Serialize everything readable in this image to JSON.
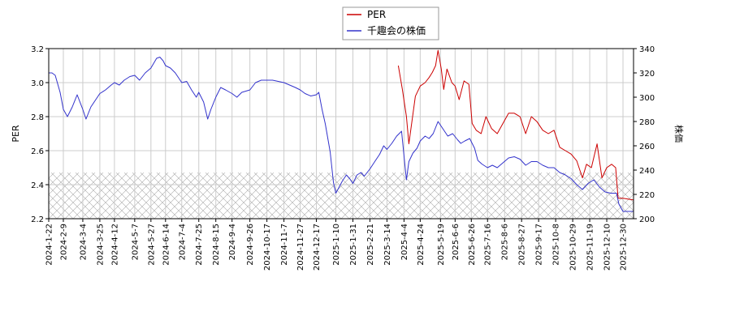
{
  "chart_data": {
    "type": "line",
    "legend": {
      "placement": "top-center",
      "entries": [
        {
          "label": "PER",
          "color": "#cc0000"
        },
        {
          "label": "千趣会の株価",
          "color": "#3333cc"
        }
      ]
    },
    "left_axis": {
      "label": "PER",
      "min": 2.2,
      "max": 3.2,
      "ticks": [
        "2.2",
        "2.4",
        "2.6",
        "2.8",
        "3.0",
        "3.2"
      ]
    },
    "right_axis": {
      "label": "株価",
      "min": 200,
      "max": 340,
      "ticks": [
        "200",
        "220",
        "240",
        "260",
        "280",
        "300",
        "320",
        "340"
      ]
    },
    "x_range": [
      "2024-01-22",
      "2026-01-12"
    ],
    "x_tick_labels": [
      "2024-1-22",
      "2024-2-9",
      "2024-3-4",
      "2024-3-25",
      "2024-4-12",
      "2024-5-7",
      "2024-5-27",
      "2024-6-14",
      "2024-7-4",
      "2024-7-25",
      "2024-8-15",
      "2024-9-4",
      "2024-9-26",
      "2024-10-17",
      "2024-11-7",
      "2024-11-27",
      "2024-12-17",
      "2025-1-10",
      "2025-1-31",
      "2025-2-21",
      "2025-3-14",
      "2025-4-4",
      "2025-4-24",
      "2025-5-19",
      "2025-6-6",
      "2025-6-26",
      "2025-7-16",
      "2025-8-6",
      "2025-8-27",
      "2025-9-17",
      "2025-10-8",
      "2025-10-29",
      "2025-11-19",
      "2025-12-10",
      "2025-12-30"
    ],
    "grid": true,
    "hatched_band": {
      "axis": "right",
      "from": 200,
      "to": 238
    },
    "series": [
      {
        "name": "PER",
        "axis": "left",
        "color": "#cc0000",
        "points": [
          [
            "2025-3-28",
            3.1
          ],
          [
            "2025-4-2",
            2.96
          ],
          [
            "2025-4-7",
            2.8
          ],
          [
            "2025-4-10",
            2.64
          ],
          [
            "2025-4-14",
            2.78
          ],
          [
            "2025-4-18",
            2.92
          ],
          [
            "2025-4-24",
            2.98
          ],
          [
            "2025-4-30",
            3.0
          ],
          [
            "2025-5-5",
            3.03
          ],
          [
            "2025-5-9",
            3.06
          ],
          [
            "2025-5-13",
            3.1
          ],
          [
            "2025-5-16",
            3.19
          ],
          [
            "2025-5-20",
            3.08
          ],
          [
            "2025-5-23",
            2.96
          ],
          [
            "2025-5-27",
            3.08
          ],
          [
            "2025-6-2",
            3.0
          ],
          [
            "2025-6-6",
            2.98
          ],
          [
            "2025-6-11",
            2.9
          ],
          [
            "2025-6-17",
            3.01
          ],
          [
            "2025-6-23",
            2.99
          ],
          [
            "2025-6-27",
            2.76
          ],
          [
            "2025-7-2",
            2.72
          ],
          [
            "2025-7-8",
            2.7
          ],
          [
            "2025-7-14",
            2.8
          ],
          [
            "2025-7-21",
            2.73
          ],
          [
            "2025-7-28",
            2.7
          ],
          [
            "2025-8-4",
            2.76
          ],
          [
            "2025-8-11",
            2.82
          ],
          [
            "2025-8-18",
            2.82
          ],
          [
            "2025-8-25",
            2.8
          ],
          [
            "2025-9-1",
            2.7
          ],
          [
            "2025-9-8",
            2.8
          ],
          [
            "2025-9-15",
            2.77
          ],
          [
            "2025-9-22",
            2.72
          ],
          [
            "2025-9-29",
            2.7
          ],
          [
            "2025-10-6",
            2.72
          ],
          [
            "2025-10-13",
            2.62
          ],
          [
            "2025-10-20",
            2.6
          ],
          [
            "2025-10-27",
            2.58
          ],
          [
            "2025-11-3",
            2.54
          ],
          [
            "2025-11-10",
            2.44
          ],
          [
            "2025-11-15",
            2.52
          ],
          [
            "2025-11-21",
            2.5
          ],
          [
            "2025-11-28",
            2.64
          ],
          [
            "2025-12-4",
            2.44
          ],
          [
            "2025-12-10",
            2.5
          ],
          [
            "2025-12-16",
            2.52
          ],
          [
            "2025-12-21",
            2.5
          ],
          [
            "2025-12-24",
            2.32
          ],
          [
            "2025-12-30",
            2.32
          ],
          [
            "2026-1-12",
            2.31
          ]
        ]
      },
      {
        "name": "千趣会の株価",
        "axis": "right",
        "color": "#3333cc",
        "points": [
          [
            "2024-1-22",
            320
          ],
          [
            "2024-1-26",
            320
          ],
          [
            "2024-1-30",
            318
          ],
          [
            "2024-2-5",
            304
          ],
          [
            "2024-2-9",
            290
          ],
          [
            "2024-2-14",
            284
          ],
          [
            "2024-2-20",
            292
          ],
          [
            "2024-2-26",
            302
          ],
          [
            "2024-3-4",
            290
          ],
          [
            "2024-3-8",
            282
          ],
          [
            "2024-3-14",
            292
          ],
          [
            "2024-3-20",
            298
          ],
          [
            "2024-3-25",
            303
          ],
          [
            "2024-4-1",
            306
          ],
          [
            "2024-4-8",
            310
          ],
          [
            "2024-4-12",
            312
          ],
          [
            "2024-4-18",
            310
          ],
          [
            "2024-4-24",
            314
          ],
          [
            "2024-5-1",
            317
          ],
          [
            "2024-5-7",
            318
          ],
          [
            "2024-5-13",
            314
          ],
          [
            "2024-5-20",
            320
          ],
          [
            "2024-5-27",
            324
          ],
          [
            "2024-6-3",
            332
          ],
          [
            "2024-6-7",
            333
          ],
          [
            "2024-6-11",
            330
          ],
          [
            "2024-6-14",
            326
          ],
          [
            "2024-6-20",
            324
          ],
          [
            "2024-6-26",
            320
          ],
          [
            "2024-7-4",
            312
          ],
          [
            "2024-7-10",
            313
          ],
          [
            "2024-7-16",
            306
          ],
          [
            "2024-7-22",
            300
          ],
          [
            "2024-7-25",
            304
          ],
          [
            "2024-7-31",
            296
          ],
          [
            "2024-8-5",
            282
          ],
          [
            "2024-8-9",
            290
          ],
          [
            "2024-8-15",
            300
          ],
          [
            "2024-8-21",
            308
          ],
          [
            "2024-8-27",
            306
          ],
          [
            "2024-9-4",
            303
          ],
          [
            "2024-9-10",
            300
          ],
          [
            "2024-9-16",
            304
          ],
          [
            "2024-9-26",
            306
          ],
          [
            "2024-10-3",
            312
          ],
          [
            "2024-10-10",
            314
          ],
          [
            "2024-10-17",
            314
          ],
          [
            "2024-10-24",
            314
          ],
          [
            "2024-10-31",
            313
          ],
          [
            "2024-11-7",
            312
          ],
          [
            "2024-11-14",
            310
          ],
          [
            "2024-11-21",
            308
          ],
          [
            "2024-11-27",
            306
          ],
          [
            "2024-12-3",
            303
          ],
          [
            "2024-12-10",
            301
          ],
          [
            "2024-12-17",
            302
          ],
          [
            "2024-12-20",
            304
          ],
          [
            "2024-12-24",
            290
          ],
          [
            "2024-12-28",
            278
          ],
          [
            "2025-1-3",
            255
          ],
          [
            "2025-1-7",
            230
          ],
          [
            "2025-1-10",
            221
          ],
          [
            "2025-1-14",
            226
          ],
          [
            "2025-1-18",
            231
          ],
          [
            "2025-1-23",
            236
          ],
          [
            "2025-1-27",
            233
          ],
          [
            "2025-1-31",
            229
          ],
          [
            "2025-2-5",
            236
          ],
          [
            "2025-2-10",
            238
          ],
          [
            "2025-2-14",
            235
          ],
          [
            "2025-2-21",
            241
          ],
          [
            "2025-2-27",
            247
          ],
          [
            "2025-3-5",
            253
          ],
          [
            "2025-3-10",
            260
          ],
          [
            "2025-3-14",
            257
          ],
          [
            "2025-3-20",
            262
          ],
          [
            "2025-3-26",
            268
          ],
          [
            "2025-4-1",
            272
          ],
          [
            "2025-4-5",
            245
          ],
          [
            "2025-4-7",
            232
          ],
          [
            "2025-4-10",
            247
          ],
          [
            "2025-4-15",
            254
          ],
          [
            "2025-4-20",
            258
          ],
          [
            "2025-4-24",
            264
          ],
          [
            "2025-4-30",
            268
          ],
          [
            "2025-5-5",
            266
          ],
          [
            "2025-5-10",
            270
          ],
          [
            "2025-5-16",
            280
          ],
          [
            "2025-5-22",
            274
          ],
          [
            "2025-5-28",
            268
          ],
          [
            "2025-6-3",
            270
          ],
          [
            "2025-6-9",
            265
          ],
          [
            "2025-6-13",
            262
          ],
          [
            "2025-6-18",
            264
          ],
          [
            "2025-6-24",
            266
          ],
          [
            "2025-6-30",
            258
          ],
          [
            "2025-7-4",
            248
          ],
          [
            "2025-7-9",
            245
          ],
          [
            "2025-7-16",
            242
          ],
          [
            "2025-7-22",
            244
          ],
          [
            "2025-7-28",
            242
          ],
          [
            "2025-8-4",
            246
          ],
          [
            "2025-8-11",
            250
          ],
          [
            "2025-8-18",
            251
          ],
          [
            "2025-8-25",
            249
          ],
          [
            "2025-9-1",
            244
          ],
          [
            "2025-9-8",
            247
          ],
          [
            "2025-9-15",
            247
          ],
          [
            "2025-9-22",
            244
          ],
          [
            "2025-9-29",
            242
          ],
          [
            "2025-10-6",
            242
          ],
          [
            "2025-10-13",
            238
          ],
          [
            "2025-10-20",
            236
          ],
          [
            "2025-10-27",
            233
          ],
          [
            "2025-11-3",
            228
          ],
          [
            "2025-11-10",
            224
          ],
          [
            "2025-11-17",
            229
          ],
          [
            "2025-11-24",
            232
          ],
          [
            "2025-12-1",
            226
          ],
          [
            "2025-12-8",
            222
          ],
          [
            "2025-12-15",
            221
          ],
          [
            "2025-12-22",
            221
          ],
          [
            "2025-12-25",
            212
          ],
          [
            "2025-12-30",
            206
          ],
          [
            "2026-1-6",
            206
          ],
          [
            "2026-1-12",
            206
          ]
        ]
      }
    ]
  }
}
